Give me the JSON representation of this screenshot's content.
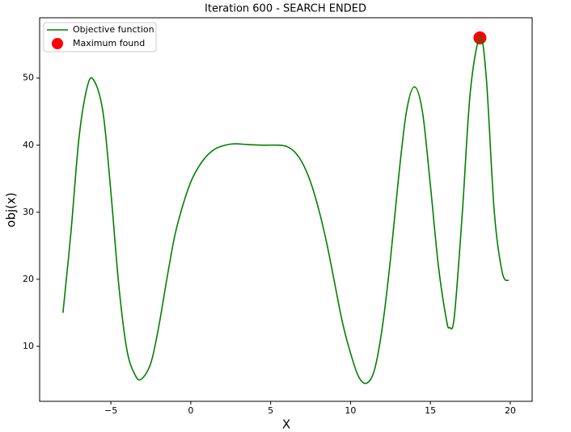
{
  "chart_data": {
    "type": "line",
    "title": "Iteration 600 - SEARCH ENDED",
    "xlabel": "X",
    "ylabel": "obj(x)",
    "legend": "upper left",
    "xlim": [
      -9.46,
      21.37
    ],
    "ylim": [
      1.8,
      59
    ],
    "xticks": [
      {
        "value": -5,
        "label": "−5"
      },
      0,
      5,
      10,
      15,
      20
    ],
    "yticks": [
      10,
      20,
      30,
      40,
      50
    ],
    "series": [
      {
        "name": "Maximum found",
        "style": "scatter",
        "color": "#ff0000",
        "x": [
          18.1
        ],
        "values": [
          56
        ]
      },
      {
        "name": "Objective function",
        "style": "line",
        "color": "#008000",
        "x": [
          -8,
          -7.5,
          -7,
          -6.5,
          -6.1,
          -5.5,
          -5,
          -4.5,
          -4,
          -3.5,
          -3.1,
          -2.5,
          -2,
          -1.5,
          -1,
          -0.5,
          0,
          0.5,
          1,
          1.5,
          2,
          2.7,
          3.5,
          4.5,
          5.5,
          6,
          6.5,
          7,
          7.5,
          8,
          8.5,
          9,
          9.5,
          10,
          10.5,
          11,
          11.5,
          12,
          12.5,
          13,
          13.5,
          14,
          14.5,
          15,
          15.5,
          16,
          16.2,
          16.5,
          17,
          17.5,
          18.1,
          18.5,
          19,
          19.5,
          19.9
        ],
        "values": [
          15,
          27,
          41,
          48.5,
          49.8,
          45,
          33,
          19,
          9.5,
          5.8,
          5.1,
          7.5,
          13,
          20,
          26.5,
          31,
          34.5,
          36.8,
          38.4,
          39.4,
          39.9,
          40.2,
          40.1,
          40,
          40,
          39.8,
          39,
          37.3,
          34.5,
          30.5,
          25.5,
          19.5,
          13.5,
          9,
          5.5,
          4.5,
          6.5,
          13,
          23,
          35,
          45,
          48.7,
          45,
          34,
          22,
          14,
          12.8,
          14.5,
          30,
          48,
          56,
          50,
          30,
          21,
          19.8
        ]
      }
    ]
  }
}
